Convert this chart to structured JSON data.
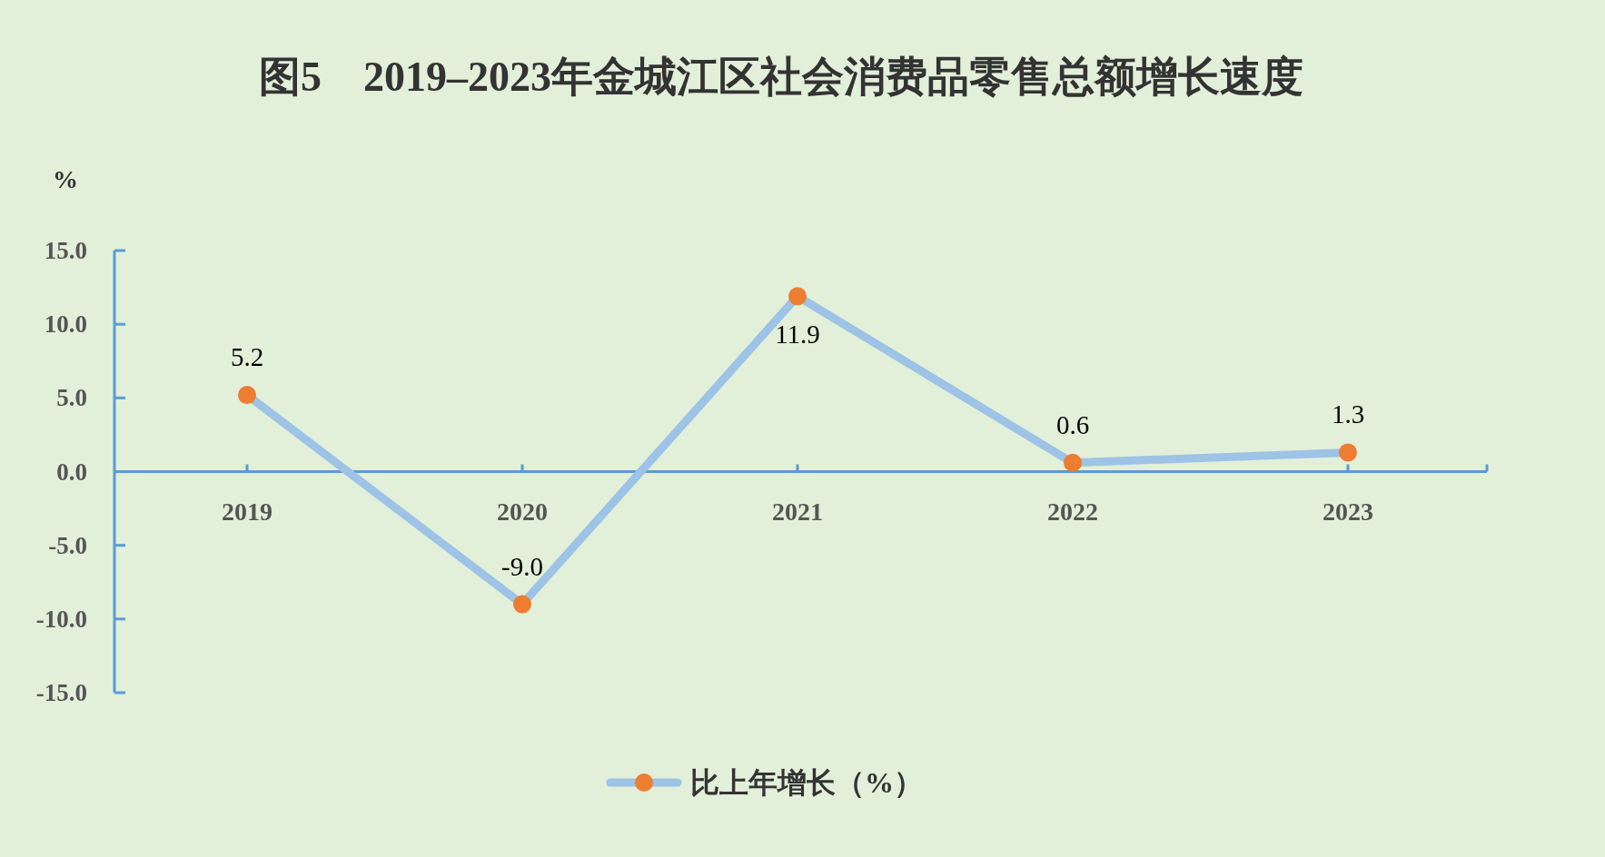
{
  "chart_data": {
    "type": "line",
    "title": "图5　2019–2023年金城江区社会消费品零售总额增长速度",
    "ylabel": "%",
    "categories": [
      "2019",
      "2020",
      "2021",
      "2022",
      "2023"
    ],
    "series": [
      {
        "name": "比上年增长（%）",
        "color": "#9dc3e6",
        "colors": [
          "#ed7d31",
          "#ed7d31",
          "#ed7d31",
          "#ed7d31",
          "#ed7d31"
        ],
        "values": [
          5.2,
          -9.0,
          11.9,
          0.6,
          1.3
        ],
        "value_labels": [
          "5.2",
          "-9.0",
          "11.9",
          "0.6",
          "1.3"
        ]
      }
    ],
    "ylim": [
      -15,
      15
    ],
    "yticks": [
      {
        "value": -15,
        "label": "-15.0"
      },
      {
        "value": -10,
        "label": "-10.0"
      },
      {
        "value": -5,
        "label": "-5.0"
      },
      {
        "value": 0,
        "label": "0.0"
      },
      {
        "value": 5,
        "label": "5.0"
      },
      {
        "value": 10,
        "label": "10.0"
      },
      {
        "value": 15,
        "label": "15.0"
      }
    ],
    "marker": "circle",
    "line_style": "solid",
    "legend": "bottom"
  }
}
